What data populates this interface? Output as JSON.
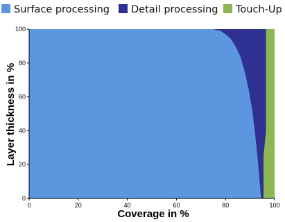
{
  "chart_data": {
    "type": "area",
    "title": "",
    "xlabel": "Coverage in %",
    "ylabel": "Layer thickness in %",
    "xlim": [
      0,
      100
    ],
    "ylim": [
      0,
      100
    ],
    "xticks": [
      "0",
      "20",
      "40",
      "60",
      "80",
      "100"
    ],
    "yticks": [
      "0",
      "20",
      "40",
      "60",
      "80",
      "100"
    ],
    "grid": false,
    "legend_position": "top",
    "series": [
      {
        "name": "Surface processing",
        "color": "#5b96de",
        "boundary": {
          "x": [
            75,
            78,
            80,
            82,
            84,
            86,
            88,
            89.5,
            91,
            92,
            93,
            93.8,
            94.5
          ],
          "y": [
            100,
            99,
            97,
            94.5,
            90,
            84,
            74,
            64,
            51,
            39,
            25,
            12,
            0
          ]
        }
      },
      {
        "name": "Detail processing",
        "color": "#2e3192",
        "boundary": {
          "x": [
            95,
            96.5,
            96.5,
            95.5,
            95.5
          ],
          "y": [
            100,
            100,
            40,
            25,
            0
          ]
        }
      },
      {
        "name": "Touch-Up",
        "color": "#8db755",
        "boundary": {
          "x": [
            100,
            100
          ],
          "y": [
            100,
            0
          ]
        }
      }
    ]
  }
}
